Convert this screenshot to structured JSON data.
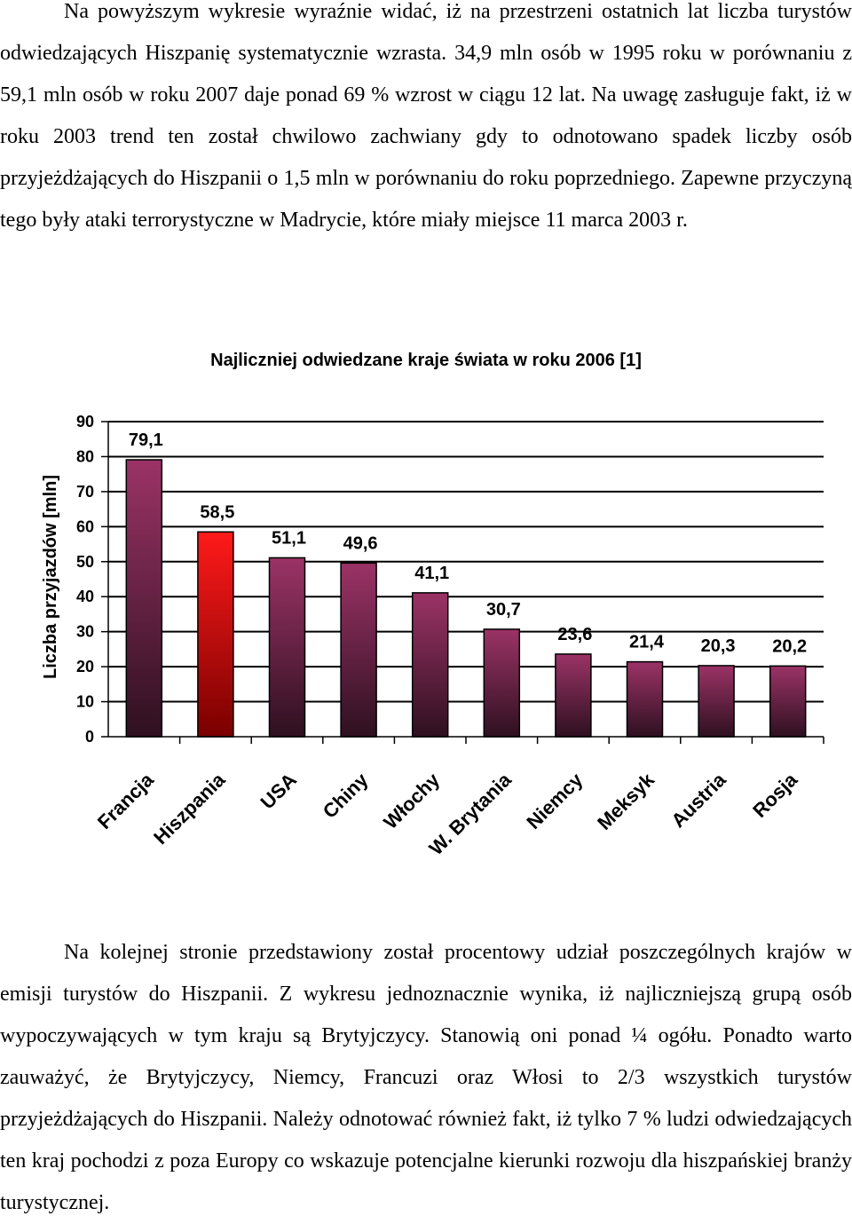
{
  "paragraph_1": "Na powyższym wykresie wyraźnie widać, iż na przestrzeni ostatnich lat liczba turystów odwiedzających Hiszpanię systematycznie wzrasta. 34,9 mln osób w 1995 roku w porównaniu z 59,1 mln osób w roku 2007 daje ponad 69 % wzrost w ciągu 12 lat. Na uwagę zasługuje fakt, iż w roku 2003 trend ten został chwilowo zachwiany gdy to odnotowano spadek liczby osób przyjeżdżających do Hiszpanii o 1,5 mln w porównaniu do roku poprzedniego. Zapewne przyczyną tego były ataki terrorystyczne w Madrycie, które miały miejsce 11 marca 2003 r.",
  "paragraph_2": "Na kolejnej stronie przedstawiony został procentowy udział poszczególnych krajów w emisji turystów do Hiszpanii. Z wykresu jednoznacznie wynika, iż najliczniejszą grupą osób wypoczywających w tym kraju są Brytyjczycy. Stanowią oni ponad ¼ ogółu. Ponadto warto zauważyć, że Brytyjczycy, Niemcy, Francuzi oraz Włosi to 2/3 wszystkich turystów przyjeżdżających do Hiszpanii. Należy odnotować również fakt, iż tylko 7 % ludzi odwiedzających ten kraj pochodzi z poza Europy co wskazuje potencjalne kierunki rozwoju dla hiszpańskiej branży turystycznej.",
  "chart_data": {
    "type": "bar",
    "title": "Najliczniej odwiedzane kraje świata w roku 2006 [1]",
    "xlabel": "",
    "ylabel": "Liczba przyjazdów [mln]",
    "categories": [
      "Francja",
      "Hiszpania",
      "USA",
      "Chiny",
      "Włochy",
      "W. Brytania",
      "Niemcy",
      "Meksyk",
      "Austria",
      "Rosja"
    ],
    "values": [
      79.1,
      58.5,
      51.1,
      49.6,
      41.1,
      30.7,
      23.6,
      21.4,
      20.3,
      20.2
    ],
    "value_labels": [
      "79,1",
      "58,5",
      "51,1",
      "49,6",
      "41,1",
      "30,7",
      "23,6",
      "21,4",
      "20,3",
      "20,2"
    ],
    "highlight_index": 1,
    "ylim": [
      0,
      90
    ],
    "yticks": [
      0,
      10,
      20,
      30,
      40,
      50,
      60,
      70,
      80,
      90
    ],
    "grid": true,
    "colors": {
      "bar_top": "#9b3366",
      "bar_bottom": "#2e1020",
      "highlight_top": "#ff1a1a",
      "highlight_bottom": "#7a0000",
      "plot_background": "#ffffff",
      "grid": "#000000"
    }
  }
}
